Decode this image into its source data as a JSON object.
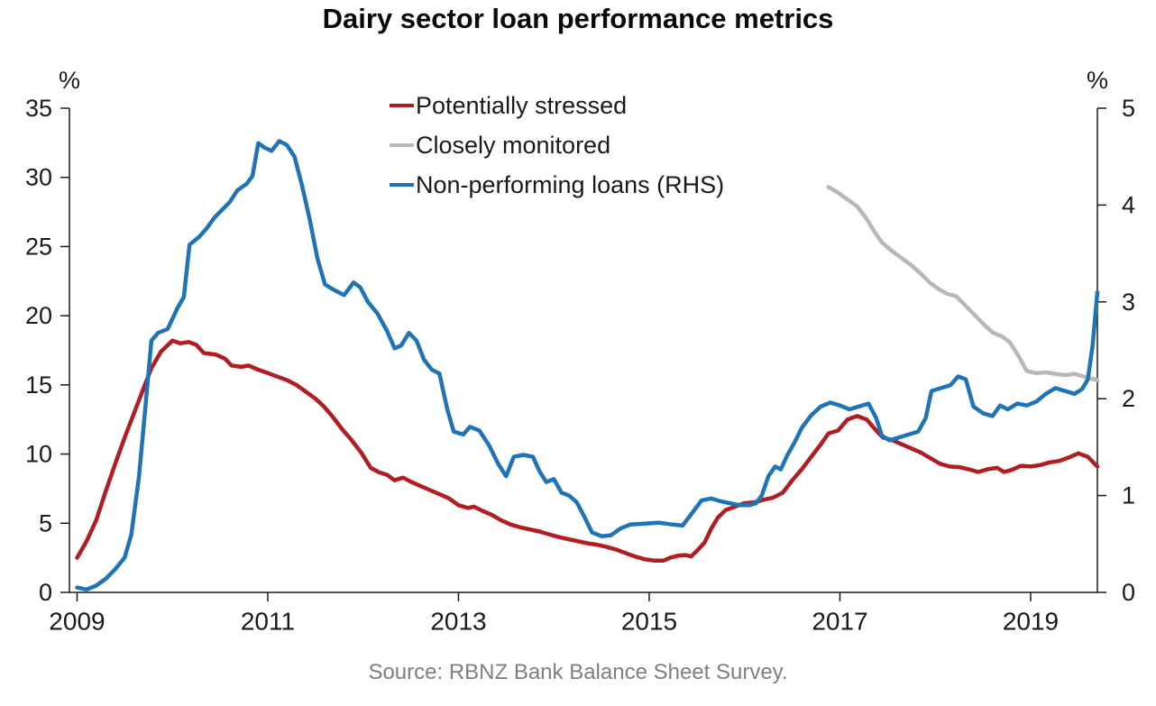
{
  "chart_data": {
    "type": "line",
    "title": "Dairy sector loan performance metrics",
    "source_note": "Source: RBNZ Bank Balance Sheet Survey.",
    "background_color": "#ffffff",
    "text_color": "#1a1a1a",
    "axis_color": "#1a1a1a",
    "source_color": "#7f7f7f",
    "grid": "off",
    "legend_position": "top-center",
    "x_axis": {
      "min": 2008.92,
      "max": 2019.7,
      "ticks": [
        2009,
        2011,
        2013,
        2015,
        2017,
        2019
      ]
    },
    "left_axis": {
      "label": "%",
      "min": 0,
      "max": 35,
      "ticks": [
        0,
        5,
        10,
        15,
        20,
        25,
        30,
        35
      ]
    },
    "right_axis": {
      "label": "%",
      "min": 0,
      "max": 5,
      "ticks": [
        0,
        1,
        2,
        3,
        4,
        5
      ]
    },
    "series": [
      {
        "name": "Potentially stressed",
        "axis": "left",
        "color": "#b01e23",
        "points": [
          [
            2009.0,
            2.5
          ],
          [
            2009.1,
            3.7
          ],
          [
            2009.2,
            5.2
          ],
          [
            2009.3,
            7.3
          ],
          [
            2009.4,
            9.3
          ],
          [
            2009.5,
            11.2
          ],
          [
            2009.6,
            13.0
          ],
          [
            2009.7,
            14.8
          ],
          [
            2009.78,
            16.2
          ],
          [
            2009.88,
            17.4
          ],
          [
            2010.0,
            18.2
          ],
          [
            2010.08,
            18.0
          ],
          [
            2010.17,
            18.1
          ],
          [
            2010.25,
            17.9
          ],
          [
            2010.33,
            17.3
          ],
          [
            2010.45,
            17.2
          ],
          [
            2010.55,
            16.9
          ],
          [
            2010.62,
            16.4
          ],
          [
            2010.72,
            16.3
          ],
          [
            2010.8,
            16.4
          ],
          [
            2010.9,
            16.1
          ],
          [
            2011.0,
            15.85
          ],
          [
            2011.1,
            15.6
          ],
          [
            2011.2,
            15.35
          ],
          [
            2011.3,
            15.0
          ],
          [
            2011.4,
            14.5
          ],
          [
            2011.5,
            14.0
          ],
          [
            2011.58,
            13.5
          ],
          [
            2011.68,
            12.7
          ],
          [
            2011.78,
            11.8
          ],
          [
            2011.88,
            11.0
          ],
          [
            2011.98,
            10.1
          ],
          [
            2012.08,
            9.0
          ],
          [
            2012.16,
            8.7
          ],
          [
            2012.25,
            8.5
          ],
          [
            2012.33,
            8.1
          ],
          [
            2012.42,
            8.3
          ],
          [
            2012.5,
            8.0
          ],
          [
            2012.6,
            7.7
          ],
          [
            2012.7,
            7.4
          ],
          [
            2012.8,
            7.1
          ],
          [
            2012.9,
            6.8
          ],
          [
            2013.0,
            6.3
          ],
          [
            2013.1,
            6.1
          ],
          [
            2013.16,
            6.2
          ],
          [
            2013.25,
            5.9
          ],
          [
            2013.35,
            5.6
          ],
          [
            2013.45,
            5.2
          ],
          [
            2013.55,
            4.9
          ],
          [
            2013.65,
            4.7
          ],
          [
            2013.75,
            4.55
          ],
          [
            2013.85,
            4.4
          ],
          [
            2013.95,
            4.2
          ],
          [
            2014.05,
            4.0
          ],
          [
            2014.15,
            3.85
          ],
          [
            2014.25,
            3.7
          ],
          [
            2014.35,
            3.55
          ],
          [
            2014.45,
            3.45
          ],
          [
            2014.55,
            3.3
          ],
          [
            2014.65,
            3.1
          ],
          [
            2014.75,
            2.85
          ],
          [
            2014.85,
            2.6
          ],
          [
            2014.95,
            2.4
          ],
          [
            2015.05,
            2.3
          ],
          [
            2015.15,
            2.3
          ],
          [
            2015.22,
            2.5
          ],
          [
            2015.3,
            2.65
          ],
          [
            2015.38,
            2.7
          ],
          [
            2015.44,
            2.6
          ],
          [
            2015.5,
            3.0
          ],
          [
            2015.58,
            3.6
          ],
          [
            2015.65,
            4.6
          ],
          [
            2015.72,
            5.4
          ],
          [
            2015.8,
            5.95
          ],
          [
            2015.9,
            6.2
          ],
          [
            2016.0,
            6.45
          ],
          [
            2016.1,
            6.5
          ],
          [
            2016.2,
            6.7
          ],
          [
            2016.3,
            6.85
          ],
          [
            2016.4,
            7.2
          ],
          [
            2016.5,
            8.1
          ],
          [
            2016.6,
            8.9
          ],
          [
            2016.7,
            9.8
          ],
          [
            2016.8,
            10.7
          ],
          [
            2016.88,
            11.5
          ],
          [
            2016.98,
            11.7
          ],
          [
            2017.08,
            12.5
          ],
          [
            2017.18,
            12.75
          ],
          [
            2017.28,
            12.5
          ],
          [
            2017.38,
            11.7
          ],
          [
            2017.45,
            11.2
          ],
          [
            2017.55,
            11.0
          ],
          [
            2017.65,
            10.7
          ],
          [
            2017.75,
            10.4
          ],
          [
            2017.85,
            10.1
          ],
          [
            2017.95,
            9.7
          ],
          [
            2018.05,
            9.3
          ],
          [
            2018.15,
            9.1
          ],
          [
            2018.25,
            9.05
          ],
          [
            2018.35,
            8.9
          ],
          [
            2018.45,
            8.7
          ],
          [
            2018.55,
            8.9
          ],
          [
            2018.65,
            9.0
          ],
          [
            2018.72,
            8.7
          ],
          [
            2018.8,
            8.85
          ],
          [
            2018.9,
            9.15
          ],
          [
            2019.0,
            9.1
          ],
          [
            2019.1,
            9.2
          ],
          [
            2019.2,
            9.4
          ],
          [
            2019.3,
            9.5
          ],
          [
            2019.4,
            9.75
          ],
          [
            2019.5,
            10.05
          ],
          [
            2019.6,
            9.8
          ],
          [
            2019.7,
            9.1
          ]
        ]
      },
      {
        "name": "Closely monitored",
        "axis": "left",
        "color": "#b8b8b8",
        "points": [
          [
            2016.88,
            29.3
          ],
          [
            2016.98,
            28.9
          ],
          [
            2017.08,
            28.4
          ],
          [
            2017.18,
            27.9
          ],
          [
            2017.28,
            27.0
          ],
          [
            2017.36,
            26.1
          ],
          [
            2017.44,
            25.3
          ],
          [
            2017.54,
            24.7
          ],
          [
            2017.64,
            24.2
          ],
          [
            2017.74,
            23.7
          ],
          [
            2017.84,
            23.1
          ],
          [
            2017.94,
            22.4
          ],
          [
            2018.04,
            21.9
          ],
          [
            2018.12,
            21.6
          ],
          [
            2018.22,
            21.4
          ],
          [
            2018.32,
            20.7
          ],
          [
            2018.42,
            20.0
          ],
          [
            2018.52,
            19.3
          ],
          [
            2018.6,
            18.8
          ],
          [
            2018.7,
            18.5
          ],
          [
            2018.78,
            18.1
          ],
          [
            2018.88,
            17.0
          ],
          [
            2018.96,
            16.0
          ],
          [
            2019.06,
            15.85
          ],
          [
            2019.16,
            15.9
          ],
          [
            2019.26,
            15.8
          ],
          [
            2019.36,
            15.7
          ],
          [
            2019.46,
            15.8
          ],
          [
            2019.56,
            15.6
          ],
          [
            2019.64,
            15.45
          ],
          [
            2019.7,
            15.35
          ]
        ]
      },
      {
        "name": "Non-performing loans (RHS)",
        "axis": "right",
        "color": "#1f74b8",
        "points": [
          [
            2009.0,
            0.05
          ],
          [
            2009.1,
            0.03
          ],
          [
            2009.2,
            0.07
          ],
          [
            2009.3,
            0.14
          ],
          [
            2009.4,
            0.24
          ],
          [
            2009.5,
            0.36
          ],
          [
            2009.57,
            0.6
          ],
          [
            2009.65,
            1.2
          ],
          [
            2009.72,
            1.95
          ],
          [
            2009.78,
            2.6
          ],
          [
            2009.85,
            2.68
          ],
          [
            2009.95,
            2.72
          ],
          [
            2010.05,
            2.93
          ],
          [
            2010.12,
            3.05
          ],
          [
            2010.18,
            3.59
          ],
          [
            2010.28,
            3.67
          ],
          [
            2010.36,
            3.76
          ],
          [
            2010.44,
            3.87
          ],
          [
            2010.52,
            3.95
          ],
          [
            2010.6,
            4.03
          ],
          [
            2010.68,
            4.15
          ],
          [
            2010.78,
            4.22
          ],
          [
            2010.84,
            4.3
          ],
          [
            2010.9,
            4.64
          ],
          [
            2010.97,
            4.59
          ],
          [
            2011.04,
            4.56
          ],
          [
            2011.12,
            4.66
          ],
          [
            2011.2,
            4.62
          ],
          [
            2011.28,
            4.5
          ],
          [
            2011.36,
            4.2
          ],
          [
            2011.44,
            3.85
          ],
          [
            2011.52,
            3.45
          ],
          [
            2011.6,
            3.18
          ],
          [
            2011.7,
            3.12
          ],
          [
            2011.8,
            3.07
          ],
          [
            2011.9,
            3.2
          ],
          [
            2011.97,
            3.15
          ],
          [
            2012.05,
            3.0
          ],
          [
            2012.15,
            2.88
          ],
          [
            2012.25,
            2.7
          ],
          [
            2012.33,
            2.52
          ],
          [
            2012.4,
            2.55
          ],
          [
            2012.48,
            2.68
          ],
          [
            2012.56,
            2.6
          ],
          [
            2012.64,
            2.4
          ],
          [
            2012.72,
            2.3
          ],
          [
            2012.8,
            2.26
          ],
          [
            2012.88,
            1.9
          ],
          [
            2012.95,
            1.66
          ],
          [
            2013.05,
            1.63
          ],
          [
            2013.12,
            1.71
          ],
          [
            2013.22,
            1.67
          ],
          [
            2013.32,
            1.52
          ],
          [
            2013.42,
            1.32
          ],
          [
            2013.5,
            1.2
          ],
          [
            2013.58,
            1.4
          ],
          [
            2013.68,
            1.42
          ],
          [
            2013.78,
            1.4
          ],
          [
            2013.85,
            1.25
          ],
          [
            2013.92,
            1.14
          ],
          [
            2014.0,
            1.17
          ],
          [
            2014.08,
            1.03
          ],
          [
            2014.16,
            1.0
          ],
          [
            2014.24,
            0.93
          ],
          [
            2014.32,
            0.78
          ],
          [
            2014.4,
            0.62
          ],
          [
            2014.5,
            0.58
          ],
          [
            2014.6,
            0.59
          ],
          [
            2014.7,
            0.66
          ],
          [
            2014.8,
            0.7
          ],
          [
            2014.95,
            0.71
          ],
          [
            2015.1,
            0.72
          ],
          [
            2015.25,
            0.7
          ],
          [
            2015.35,
            0.69
          ],
          [
            2015.45,
            0.82
          ],
          [
            2015.55,
            0.95
          ],
          [
            2015.65,
            0.97
          ],
          [
            2015.75,
            0.94
          ],
          [
            2015.85,
            0.92
          ],
          [
            2015.95,
            0.9
          ],
          [
            2016.05,
            0.9
          ],
          [
            2016.12,
            0.92
          ],
          [
            2016.18,
            1.0
          ],
          [
            2016.25,
            1.2
          ],
          [
            2016.32,
            1.3
          ],
          [
            2016.38,
            1.27
          ],
          [
            2016.45,
            1.42
          ],
          [
            2016.52,
            1.54
          ],
          [
            2016.6,
            1.7
          ],
          [
            2016.7,
            1.83
          ],
          [
            2016.8,
            1.92
          ],
          [
            2016.9,
            1.96
          ],
          [
            2017.0,
            1.93
          ],
          [
            2017.1,
            1.89
          ],
          [
            2017.2,
            1.92
          ],
          [
            2017.3,
            1.95
          ],
          [
            2017.38,
            1.8
          ],
          [
            2017.44,
            1.62
          ],
          [
            2017.52,
            1.57
          ],
          [
            2017.62,
            1.6
          ],
          [
            2017.72,
            1.63
          ],
          [
            2017.82,
            1.66
          ],
          [
            2017.9,
            1.8
          ],
          [
            2017.96,
            2.08
          ],
          [
            2018.06,
            2.11
          ],
          [
            2018.16,
            2.14
          ],
          [
            2018.24,
            2.23
          ],
          [
            2018.32,
            2.2
          ],
          [
            2018.4,
            1.92
          ],
          [
            2018.5,
            1.85
          ],
          [
            2018.6,
            1.82
          ],
          [
            2018.68,
            1.93
          ],
          [
            2018.76,
            1.89
          ],
          [
            2018.86,
            1.95
          ],
          [
            2018.96,
            1.93
          ],
          [
            2019.06,
            1.97
          ],
          [
            2019.16,
            2.05
          ],
          [
            2019.26,
            2.11
          ],
          [
            2019.36,
            2.08
          ],
          [
            2019.46,
            2.05
          ],
          [
            2019.54,
            2.1
          ],
          [
            2019.6,
            2.2
          ],
          [
            2019.65,
            2.55
          ],
          [
            2019.7,
            3.1
          ]
        ]
      }
    ]
  }
}
